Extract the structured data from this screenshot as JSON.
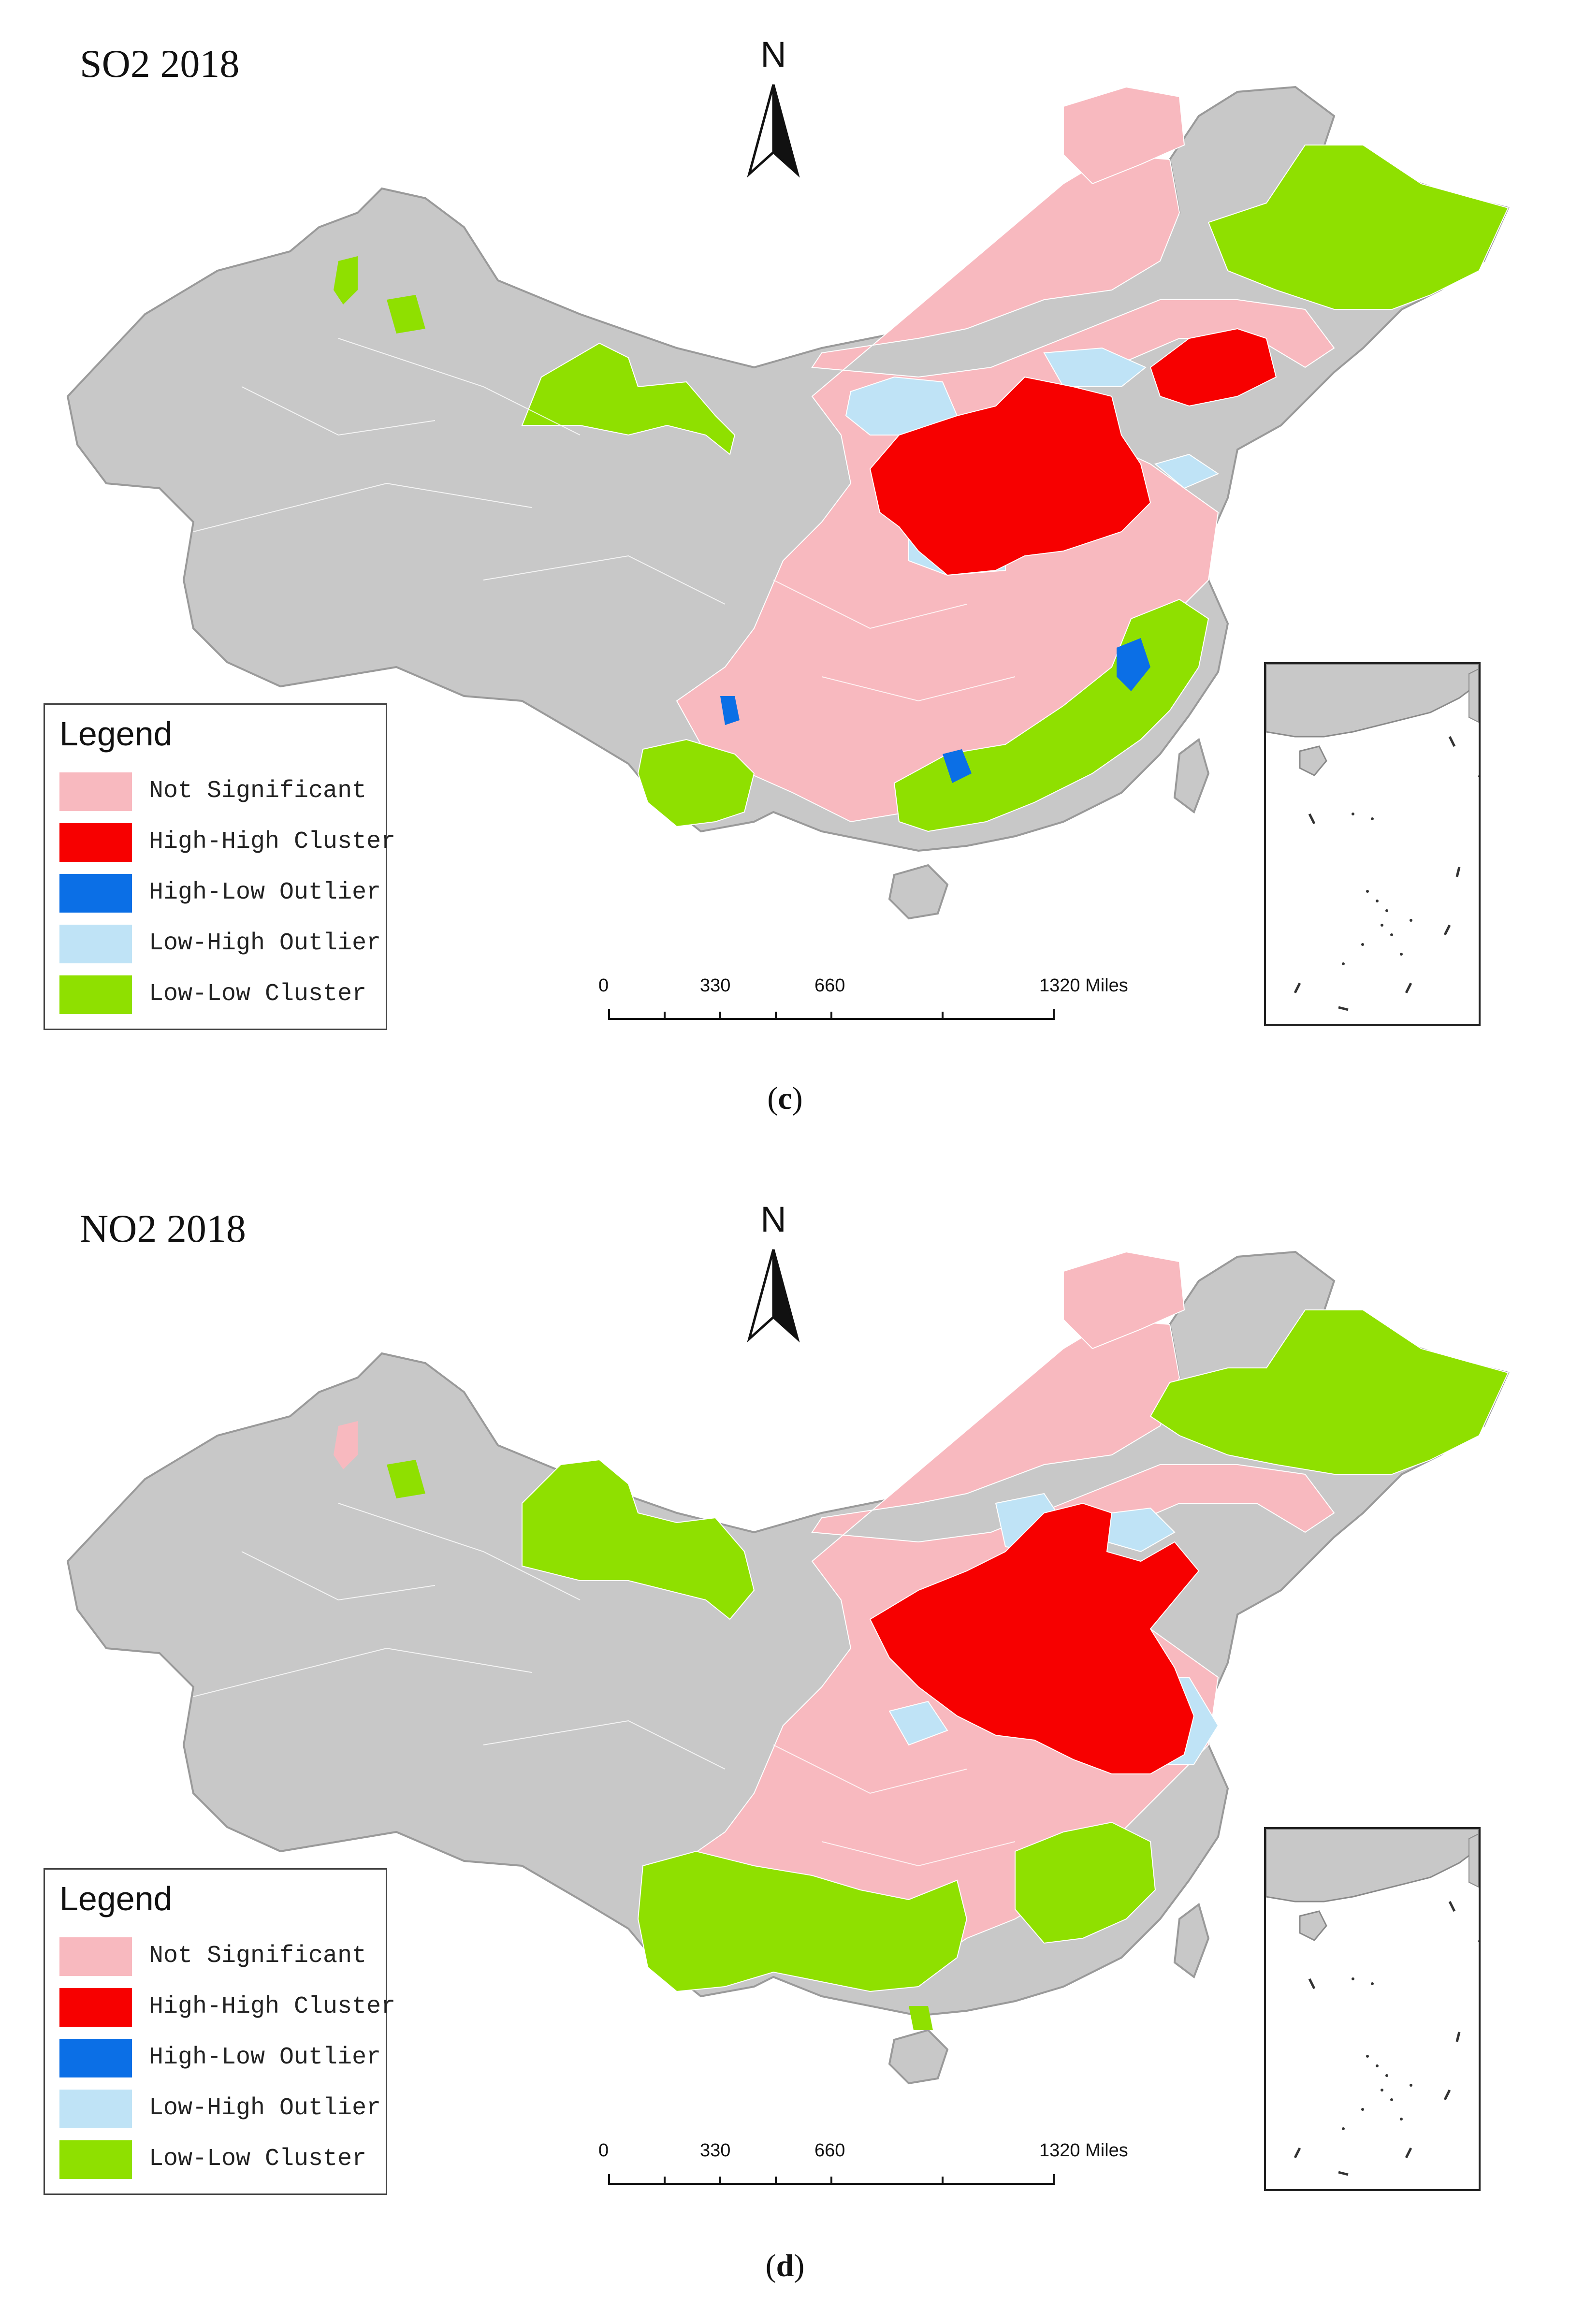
{
  "panels": [
    {
      "title": "SO2 2018",
      "caption_open": "(",
      "caption_letter": "c",
      "caption_close": ")",
      "north_label": "N",
      "legend_title": "Legend",
      "legend_items": [
        {
          "label": "Not Significant",
          "color": "#f8b9bf"
        },
        {
          "label": "High-High Cluster",
          "color": "#f70000"
        },
        {
          "label": "High-Low Outlier",
          "color": "#0b6fe6"
        },
        {
          "label": "Low-High Outlier",
          "color": "#bfe3f6"
        },
        {
          "label": "Low-Low Cluster",
          "color": "#8fe000"
        }
      ],
      "scale_labels": [
        "0",
        "330",
        "660",
        "1320 Miles"
      ]
    },
    {
      "title": "NO2 2018",
      "caption_open": "(",
      "caption_letter": "d",
      "caption_close": ")",
      "north_label": "N",
      "legend_title": "Legend",
      "legend_items": [
        {
          "label": "Not Significant",
          "color": "#f8b9bf"
        },
        {
          "label": "High-High Cluster",
          "color": "#f70000"
        },
        {
          "label": "High-Low Outlier",
          "color": "#0b6fe6"
        },
        {
          "label": "Low-High Outlier",
          "color": "#bfe3f6"
        },
        {
          "label": "Low-Low Cluster",
          "color": "#8fe000"
        }
      ],
      "scale_labels": [
        "0",
        "330",
        "660",
        "1320 Miles"
      ]
    }
  ],
  "colors": {
    "base_gray": "#c8c8c8",
    "boundary": "#ffffff",
    "not_significant": "#f8b9bf",
    "high_high": "#f70000",
    "high_low": "#0b6fe6",
    "low_high": "#bfe3f6",
    "low_low": "#8fe000"
  }
}
